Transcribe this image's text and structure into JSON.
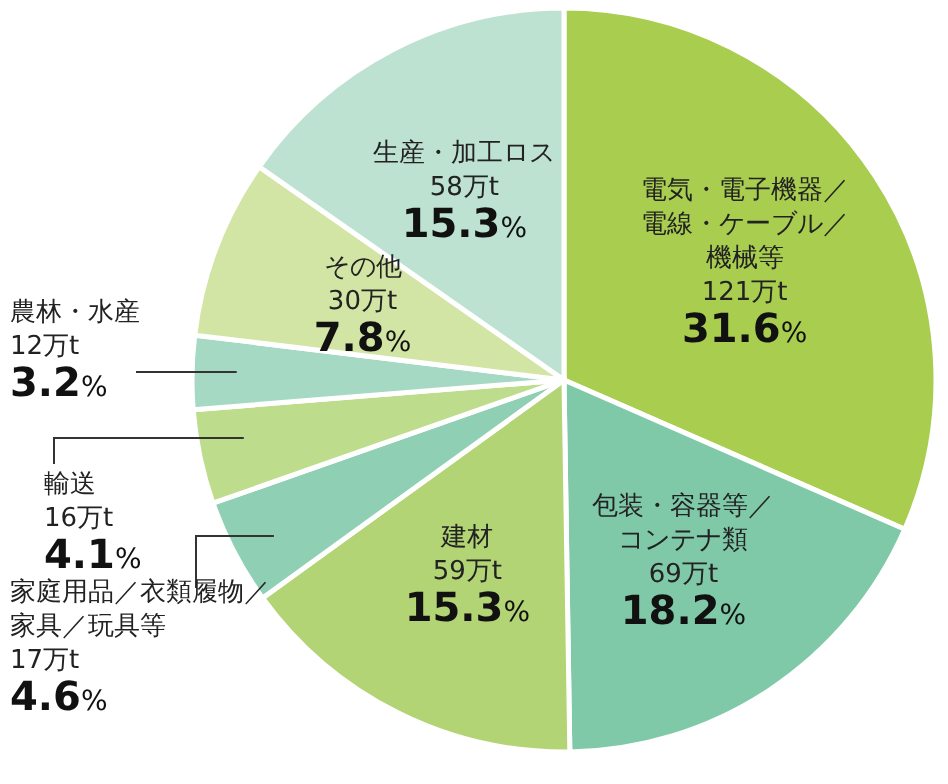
{
  "chart_data": {
    "type": "pie",
    "categories": [
      "電気・電子機器／電線・ケーブル／機械等",
      "包装・容器等／コンテナ類",
      "建材",
      "家庭用品／衣類履物／家具／玩具等",
      "輸送",
      "農林・水産",
      "その他",
      "生産・加工ロス"
    ],
    "values": [
      31.6,
      18.2,
      15.3,
      4.6,
      4.1,
      3.2,
      7.8,
      15.3
    ],
    "value_labels": [
      "121万t\n31.6%",
      "69万t\n18.2%",
      "59万t\n15.3%",
      "17万t\n4.6%",
      "16万t\n4.1%",
      "12万t\n3.2%",
      "30万t\n7.8%",
      "58万t\n15.3%"
    ],
    "colors": [
      "#a9cd4f",
      "#7fc9a9",
      "#b3d474",
      "#8fd0b4",
      "#bedd8c",
      "#a6d9c4",
      "#d2e5a4",
      "#bde2d2"
    ]
  }
}
